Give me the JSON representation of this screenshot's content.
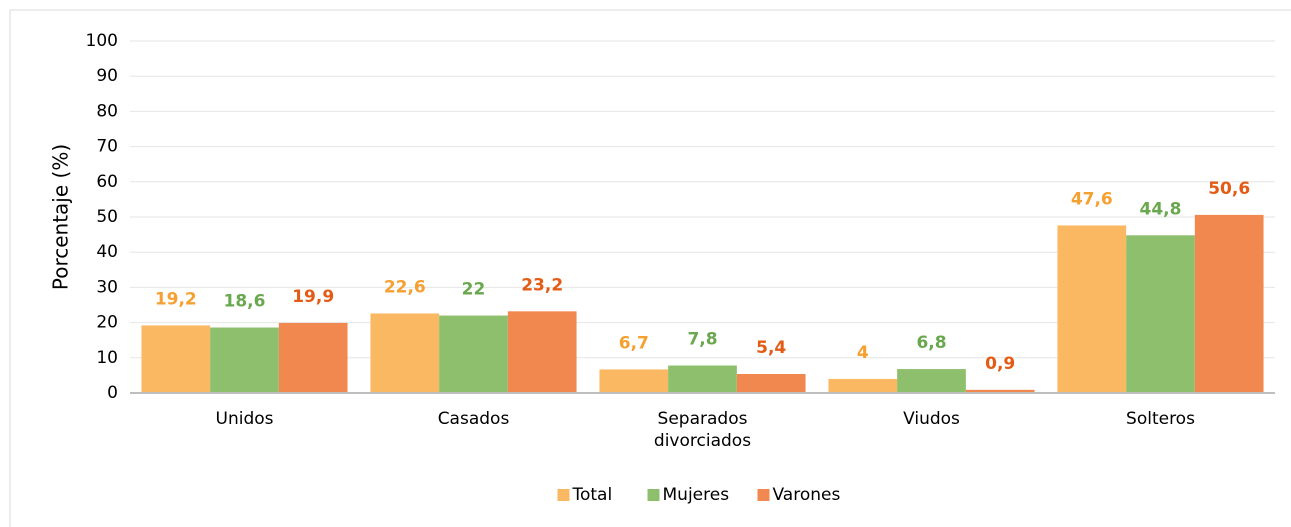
{
  "chart_data": {
    "type": "bar",
    "y_label": "Porcentaje (%)",
    "categories": [
      "Unidos",
      "Casados",
      "Separados divorciados",
      "Viudos",
      "Solteros"
    ],
    "series": [
      {
        "name": "Total",
        "color": "#fbb862",
        "label_color": "#f5a030",
        "values": [
          19.2,
          22.6,
          6.7,
          4,
          47.6
        ],
        "value_labels": [
          "19,2",
          "22,6",
          "6,7",
          "4",
          "47,6"
        ]
      },
      {
        "name": "Mujeres",
        "color": "#8dbf6c",
        "label_color": "#6aa84f",
        "values": [
          18.6,
          22,
          7.8,
          6.8,
          44.8
        ],
        "value_labels": [
          "18,6",
          "22",
          "7,8",
          "6,8",
          "44,8"
        ]
      },
      {
        "name": "Varones",
        "color": "#f0884f",
        "label_color": "#e35b14",
        "values": [
          19.9,
          23.2,
          5.4,
          0.9,
          50.6
        ],
        "value_labels": [
          "19,9",
          "23,2",
          "5,4",
          "0,9",
          "50,6"
        ]
      }
    ],
    "ylim": [
      0,
      100
    ],
    "yticks": [
      0,
      10,
      20,
      30,
      40,
      50,
      60,
      70,
      80,
      90,
      100
    ],
    "grid": true,
    "legend": "bottom"
  }
}
